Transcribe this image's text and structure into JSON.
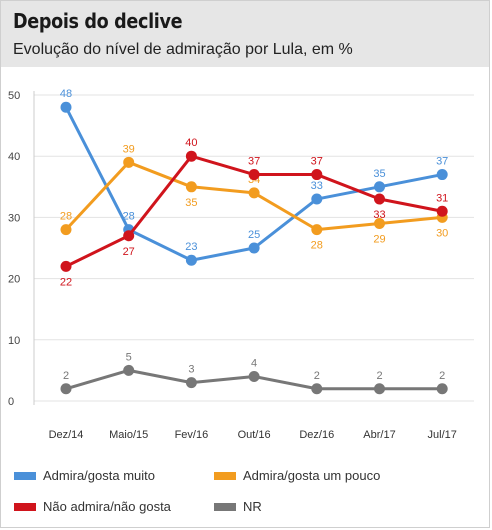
{
  "header": {
    "title": "Depois do declive",
    "subtitle": "Evolução do nível de admiração por Lula, em %"
  },
  "chart_data": {
    "type": "line",
    "categories": [
      "Dez/14",
      "Maio/15",
      "Fev/16",
      "Out/16",
      "Dez/16",
      "Abr/17",
      "Jul/17"
    ],
    "ylim": [
      0,
      50
    ],
    "yticks": [
      0,
      10,
      20,
      30,
      40,
      50
    ],
    "grid": true,
    "legend_position": "bottom",
    "series": [
      {
        "name": "Admira/gosta muito",
        "color": "#4a90d9",
        "values": [
          48,
          28,
          23,
          25,
          33,
          35,
          37
        ],
        "label_position": "above"
      },
      {
        "name": "Admira/gosta um pouco",
        "color": "#f29c1f",
        "values": [
          28,
          39,
          35,
          34,
          28,
          29,
          30
        ],
        "label_position": "mixed"
      },
      {
        "name": "Não admira/não gosta",
        "color": "#d0141c",
        "values": [
          22,
          27,
          40,
          37,
          37,
          33,
          31
        ],
        "label_position": "mixed"
      },
      {
        "name": "NR",
        "color": "#777777",
        "values": [
          2,
          5,
          3,
          4,
          2,
          2,
          2
        ],
        "label_position": "above"
      }
    ]
  }
}
